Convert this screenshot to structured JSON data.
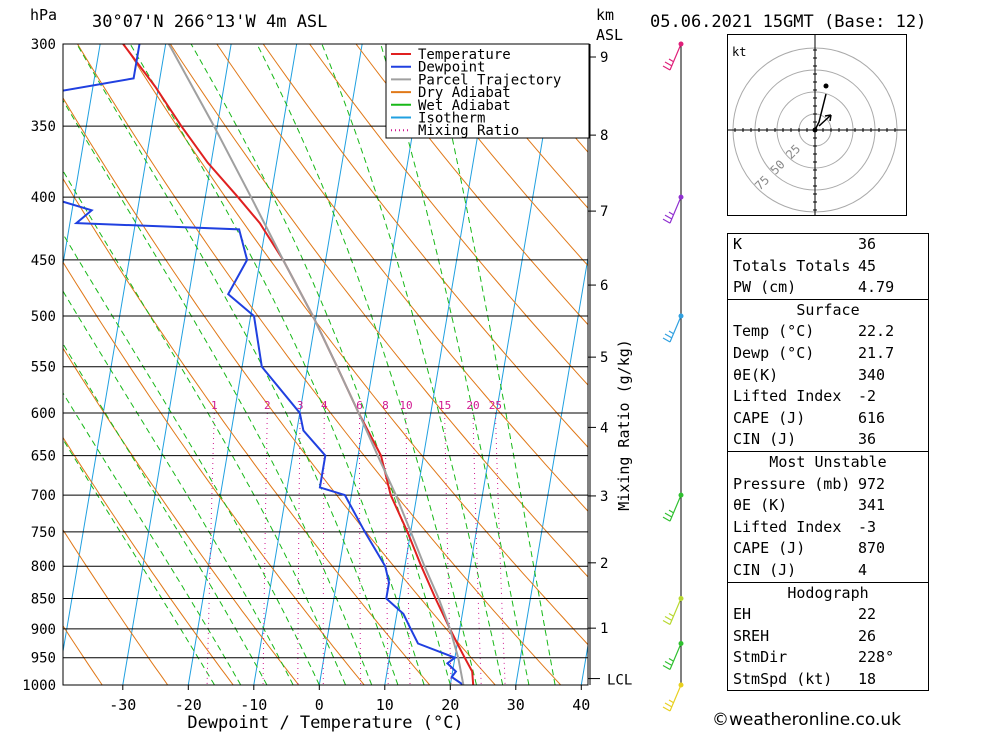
{
  "header": {
    "hpa_label": "hPa",
    "location": "30°07'N  266°13'W  4m  ASL",
    "km_label": "km",
    "asl_label": "ASL",
    "datetime": "05.06.2021  15GMT  (Base: 12)"
  },
  "chart_data": {
    "type": "skew-t",
    "xlabel": "Dewpoint / Temperature (°C)",
    "ylabel_right": "Mixing Ratio (g/kg)",
    "pressure_levels": [
      300,
      350,
      400,
      450,
      500,
      550,
      600,
      650,
      700,
      750,
      800,
      850,
      900,
      950,
      1000
    ],
    "temp_ticks": [
      -30,
      -20,
      -10,
      0,
      10,
      20,
      30,
      40
    ],
    "km_ticks": [
      1,
      2,
      3,
      4,
      5,
      6,
      7,
      8,
      9
    ],
    "lcl_label": "LCL",
    "mixing_ratio_labels": [
      "1",
      "2",
      "3",
      "4",
      "6",
      "8",
      "10",
      "15",
      "20",
      "25"
    ],
    "legend": [
      "Temperature",
      "Dewpoint",
      "Parcel Trajectory",
      "Dry Adiabat",
      "Wet Adiabat",
      "Isotherm",
      "Mixing Ratio"
    ],
    "colors": {
      "temperature": "#e02020",
      "dewpoint": "#2040e0",
      "parcel": "#a0a0a0",
      "dry_adiabat": "#e07818",
      "wet_adiabat": "#18b818",
      "isotherm": "#20a0e0",
      "mixing_ratio": "#d01890"
    },
    "temperature": [
      [
        1000,
        23.5
      ],
      [
        975,
        23
      ],
      [
        950,
        21.5
      ],
      [
        925,
        20
      ],
      [
        900,
        18.5
      ],
      [
        850,
        15.5
      ],
      [
        800,
        12.5
      ],
      [
        750,
        9.5
      ],
      [
        700,
        6
      ],
      [
        650,
        3.5
      ],
      [
        600,
        -1
      ],
      [
        550,
        -5.5
      ],
      [
        500,
        -10.5
      ],
      [
        450,
        -16.5
      ],
      [
        420,
        -21
      ],
      [
        400,
        -25
      ],
      [
        375,
        -30.5
      ],
      [
        350,
        -35.5
      ],
      [
        325,
        -40.5
      ],
      [
        300,
        -46.5
      ]
    ],
    "dewpoint": [
      [
        1000,
        22
      ],
      [
        985,
        20
      ],
      [
        975,
        20.5
      ],
      [
        960,
        19
      ],
      [
        950,
        20
      ],
      [
        925,
        14
      ],
      [
        900,
        12.5
      ],
      [
        875,
        11
      ],
      [
        850,
        8
      ],
      [
        825,
        8
      ],
      [
        800,
        7
      ],
      [
        750,
        3
      ],
      [
        700,
        -1
      ],
      [
        690,
        -5
      ],
      [
        650,
        -5
      ],
      [
        620,
        -9
      ],
      [
        600,
        -10
      ],
      [
        550,
        -17
      ],
      [
        500,
        -19.5
      ],
      [
        480,
        -24
      ],
      [
        450,
        -22
      ],
      [
        425,
        -24
      ],
      [
        420,
        -49
      ],
      [
        410,
        -47
      ],
      [
        400,
        -54
      ],
      [
        390,
        -55
      ],
      [
        380,
        -55
      ],
      [
        370,
        -62
      ],
      [
        360,
        -57
      ],
      [
        350,
        -60
      ],
      [
        330,
        -58
      ],
      [
        320,
        -44
      ],
      [
        310,
        -44
      ],
      [
        300,
        -44
      ]
    ],
    "parcel": [
      [
        1000,
        22
      ],
      [
        950,
        20.5
      ],
      [
        900,
        18.5
      ],
      [
        850,
        16
      ],
      [
        800,
        13
      ],
      [
        750,
        10
      ],
      [
        700,
        6.8
      ],
      [
        650,
        3
      ],
      [
        600,
        -1
      ],
      [
        550,
        -5.5
      ],
      [
        500,
        -10.5
      ],
      [
        450,
        -16.5
      ],
      [
        400,
        -23
      ],
      [
        350,
        -30.5
      ],
      [
        300,
        -39.5
      ]
    ],
    "mixing_ratios": [
      1,
      2,
      3,
      4,
      6,
      8,
      10,
      15,
      20,
      25
    ],
    "hodograph_ring_labels": [
      "25",
      "50",
      "75"
    ],
    "hodograph_unit": "kt",
    "wind_levels": [
      300,
      400,
      500,
      700,
      850,
      925,
      1000
    ]
  },
  "stats": {
    "general": [
      {
        "label": "K",
        "value": "36"
      },
      {
        "label": "Totals Totals",
        "value": "45"
      },
      {
        "label": "PW (cm)",
        "value": "4.79"
      }
    ],
    "surface_title": "Surface",
    "surface": [
      {
        "label": "Temp (°C)",
        "value": "22.2"
      },
      {
        "label": "Dewp (°C)",
        "value": "21.7"
      },
      {
        "label": "θE(K)",
        "value": "340"
      },
      {
        "label": "Lifted Index",
        "value": "-2"
      },
      {
        "label": "CAPE (J)",
        "value": "616"
      },
      {
        "label": "CIN (J)",
        "value": "36"
      }
    ],
    "mu_title": "Most Unstable",
    "mu": [
      {
        "label": "Pressure (mb)",
        "value": "972"
      },
      {
        "label": "θE (K)",
        "value": "341"
      },
      {
        "label": "Lifted Index",
        "value": "-3"
      },
      {
        "label": "CAPE (J)",
        "value": "870"
      },
      {
        "label": "CIN (J)",
        "value": "4"
      }
    ],
    "hodo_title": "Hodograph",
    "hodo": [
      {
        "label": "EH",
        "value": "22"
      },
      {
        "label": "SREH",
        "value": "26"
      },
      {
        "label": "StmDir",
        "value": "228°"
      },
      {
        "label": "StmSpd (kt)",
        "value": "18"
      }
    ]
  },
  "footer": {
    "copyright": "©weatheronline.co.uk"
  }
}
